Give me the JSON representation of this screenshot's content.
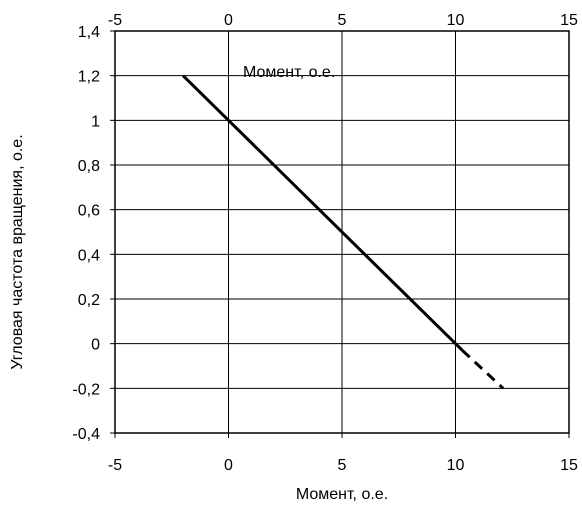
{
  "chart_data": {
    "type": "line",
    "title": "",
    "xlabel": "Момент, о.е.",
    "ylabel": "Угловая частота вращения, о.е.",
    "inner_label": "Момент, о.е.",
    "xlim": [
      -5,
      15
    ],
    "ylim": [
      -0.4,
      1.4
    ],
    "x_ticks": [
      -5,
      0,
      5,
      10,
      15
    ],
    "x_tick_labels": [
      "-5",
      "0",
      "5",
      "10",
      "15"
    ],
    "top_x_tick_labels": [
      "-5",
      "0",
      "5",
      "10",
      "15"
    ],
    "y_ticks": [
      -0.4,
      -0.2,
      0,
      0.2,
      0.4,
      0.6,
      0.8,
      1,
      1.2,
      1.4
    ],
    "y_tick_labels": [
      "-0,4",
      "-0,2",
      "0",
      "0,2",
      "0,4",
      "0,6",
      "0,8",
      "1",
      "1,2",
      "1,4"
    ],
    "grid": true,
    "series": [
      {
        "style": "solid",
        "color": "#000000",
        "x": [
          -2,
          10.3
        ],
        "y": [
          1.2,
          -0.03
        ]
      },
      {
        "style": "dashed",
        "color": "#000000",
        "x": [
          10.3,
          12.1
        ],
        "y": [
          -0.03,
          -0.2
        ]
      }
    ]
  }
}
